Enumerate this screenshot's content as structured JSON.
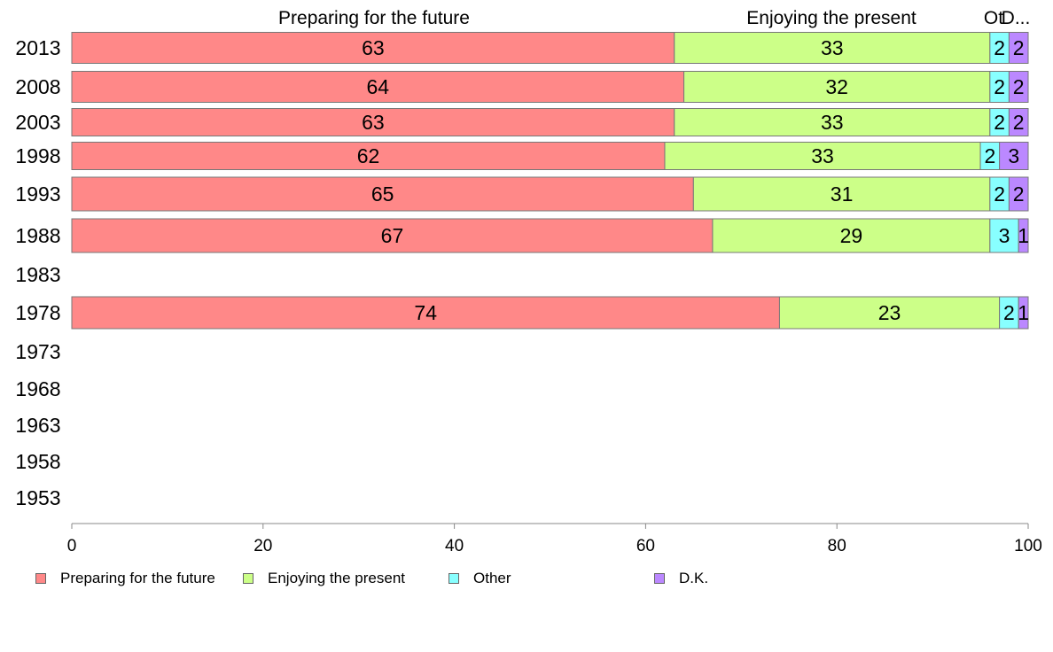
{
  "chart_data": {
    "type": "bar",
    "orientation": "horizontal",
    "stacked": true,
    "categories": [
      "2013",
      "2008",
      "2003",
      "1998",
      "1993",
      "1988",
      "1983",
      "1978",
      "1973",
      "1968",
      "1963",
      "1958",
      "1953"
    ],
    "series": [
      {
        "name": "Preparing for the future",
        "color": "#ff8888",
        "values": [
          63,
          64,
          63,
          62,
          65,
          67,
          null,
          74,
          null,
          null,
          null,
          null,
          null
        ]
      },
      {
        "name": "Enjoying the present",
        "color": "#ccff88",
        "values": [
          33,
          32,
          33,
          33,
          31,
          29,
          null,
          23,
          null,
          null,
          null,
          null,
          null
        ]
      },
      {
        "name": "Other",
        "color": "#88ffff",
        "values": [
          2,
          2,
          2,
          2,
          2,
          3,
          null,
          2,
          null,
          null,
          null,
          null,
          null
        ]
      },
      {
        "name": "D.K.",
        "color": "#bb88ff",
        "values": [
          2,
          2,
          2,
          3,
          2,
          1,
          null,
          1,
          null,
          null,
          null,
          null,
          null
        ]
      }
    ],
    "column_headers": [
      "Preparing for the future",
      "Enjoying the present",
      "Ot",
      "D..."
    ],
    "x_ticks": [
      "0",
      "20",
      "40",
      "60",
      "80",
      "100"
    ],
    "xlim": [
      0,
      100
    ],
    "grid": false,
    "legend_position": "bottom"
  }
}
